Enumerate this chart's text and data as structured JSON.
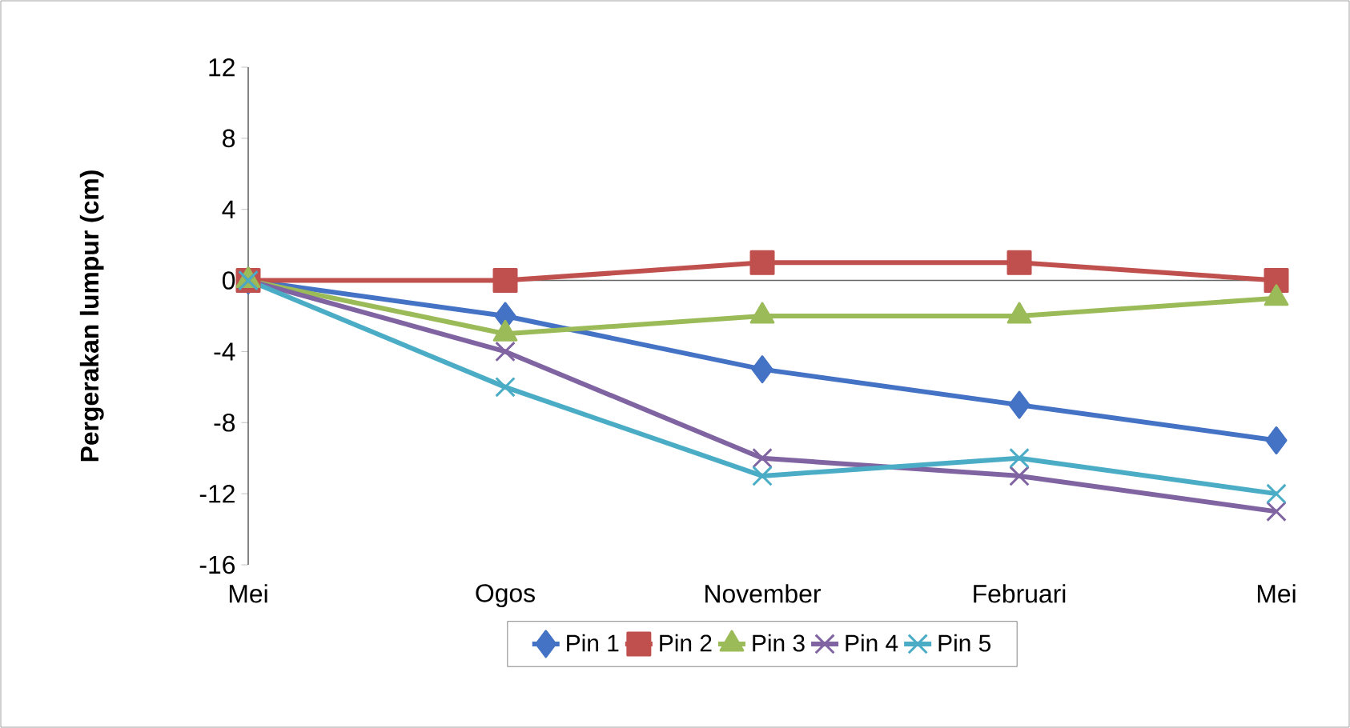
{
  "chart_data": {
    "type": "line",
    "ylabel": "Pergerakan lumpur (cm)",
    "categories": [
      "Mei",
      "Ogos",
      "November",
      "Februari",
      "Mei"
    ],
    "ylim": [
      -16,
      12
    ],
    "yticks": [
      -16,
      -12,
      -8,
      -4,
      0,
      4,
      8,
      12
    ],
    "legend": "bottom",
    "series": [
      {
        "name": "Pin 1",
        "color": "#4472c4",
        "marker": "diamond",
        "values": [
          0,
          -2,
          -5,
          -7,
          -9
        ]
      },
      {
        "name": "Pin 2",
        "color": "#c0504d",
        "marker": "square",
        "values": [
          0,
          0,
          1,
          1,
          0
        ]
      },
      {
        "name": "Pin 3",
        "color": "#9bbb59",
        "marker": "triangle",
        "values": [
          0,
          -3,
          -2,
          -2,
          -1
        ]
      },
      {
        "name": "Pin 4",
        "color": "#8064a2",
        "marker": "cross",
        "values": [
          0,
          -4,
          -10,
          -11,
          -13
        ]
      },
      {
        "name": "Pin 5",
        "color": "#4bacc6",
        "marker": "cross",
        "values": [
          0,
          -6,
          -11,
          -10,
          -12
        ]
      }
    ]
  }
}
